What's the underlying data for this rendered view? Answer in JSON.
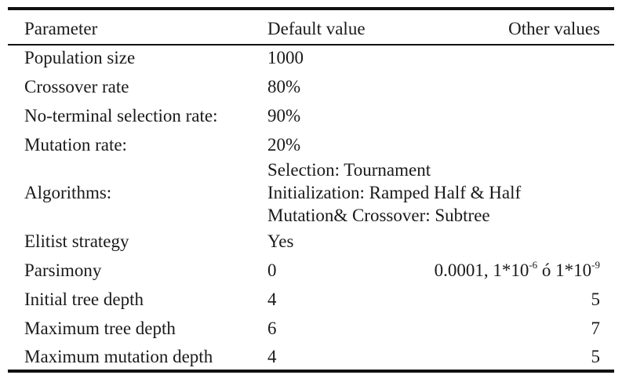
{
  "headers": {
    "parameter": "Parameter",
    "default": "Default value",
    "other": "Other values"
  },
  "rows": [
    {
      "parameter": "Population size",
      "default": "1000",
      "other": ""
    },
    {
      "parameter": "Crossover rate",
      "default": "80%",
      "other": ""
    },
    {
      "parameter": "No-terminal selection rate:",
      "default": "90%",
      "other": ""
    },
    {
      "parameter": "Mutation rate:",
      "default": "20%",
      "other": ""
    },
    {
      "parameter": "Algorithms:",
      "default_lines": [
        "Selection: Tournament",
        "Initialization: Ramped Half & Half",
        "Mutation& Crossover: Subtree"
      ],
      "other": ""
    },
    {
      "parameter": "Elitist strategy",
      "default": "Yes",
      "other": ""
    },
    {
      "parameter": "Parsimony",
      "default": "0",
      "other_parts": {
        "a": "0.0001, 1*10",
        "a_exp": "-6",
        "b": " ó 1*10",
        "b_exp": "-9"
      }
    },
    {
      "parameter": "Initial tree depth",
      "default": "4",
      "other": "5"
    },
    {
      "parameter": "Maximum tree depth",
      "default": "6",
      "other": "7"
    },
    {
      "parameter": "Maximum mutation depth",
      "default": "4",
      "other": "5"
    }
  ]
}
